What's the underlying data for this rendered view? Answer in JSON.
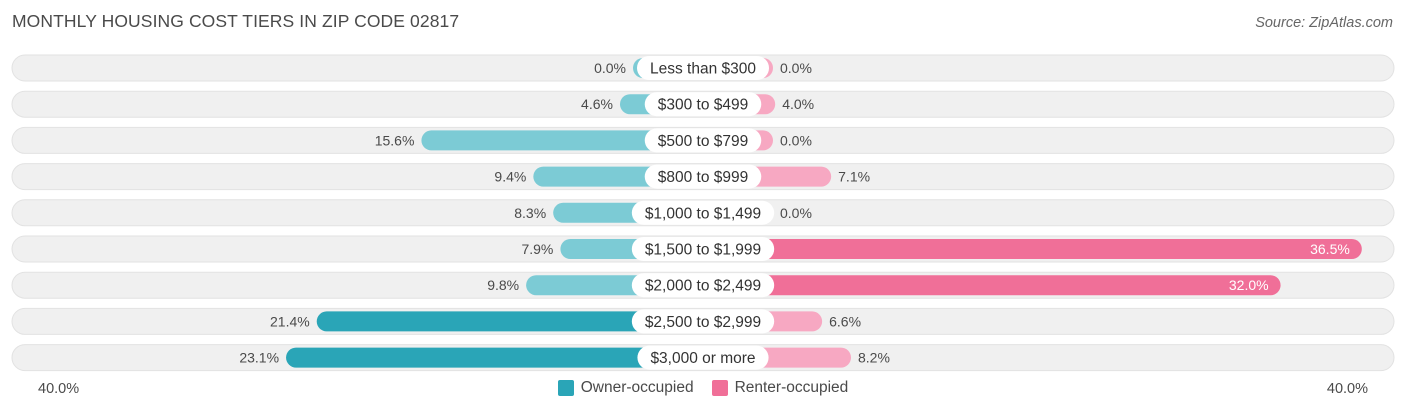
{
  "header": {
    "title": "MONTHLY HOUSING COST TIERS IN ZIP CODE 02817",
    "source": "Source: ZipAtlas.com"
  },
  "chart_data": {
    "type": "bar",
    "orientation": "horizontal-diverging",
    "categories": [
      "Less than $300",
      "$300 to $499",
      "$500 to $799",
      "$800 to $999",
      "$1,000 to $1,499",
      "$1,500 to $1,999",
      "$2,000 to $2,499",
      "$2,500 to $2,999",
      "$3,000 or more"
    ],
    "series": [
      {
        "name": "Owner-occupied",
        "values": [
          0.0,
          4.6,
          15.6,
          9.4,
          8.3,
          7.9,
          9.8,
          21.4,
          23.1
        ],
        "labels": [
          "0.0%",
          "4.6%",
          "15.6%",
          "9.4%",
          "8.3%",
          "7.9%",
          "9.8%",
          "21.4%",
          "23.1%"
        ]
      },
      {
        "name": "Renter-occupied",
        "values": [
          0.0,
          4.0,
          0.0,
          7.1,
          0.0,
          36.5,
          32.0,
          6.6,
          8.2
        ],
        "labels": [
          "0.0%",
          "4.0%",
          "0.0%",
          "7.1%",
          "0.0%",
          "36.5%",
          "32.0%",
          "6.6%",
          "8.2%"
        ]
      }
    ],
    "xlim": [
      -40,
      40
    ],
    "axis_labels": {
      "left": "40.0%",
      "right": "40.0%"
    },
    "legend_position": "bottom-center",
    "colors": {
      "owner_light": "#7ccbd5",
      "owner_dark": "#2aa5b7",
      "renter_light": "#f7a8c2",
      "renter_dark": "#f06f98",
      "row_bg": "#f0f0f0"
    }
  }
}
